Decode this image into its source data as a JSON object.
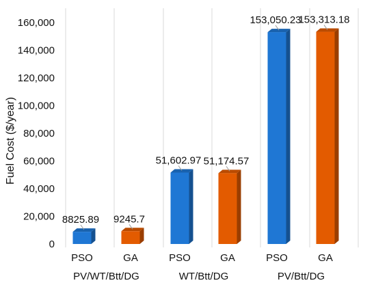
{
  "chart_data": {
    "type": "bar",
    "style": "3d-clustered-column",
    "ylabel": "Fuel Cost ($/year)",
    "xlabel": "",
    "ylim": [
      0,
      160000
    ],
    "yticks": [
      0,
      20000,
      40000,
      60000,
      80000,
      100000,
      120000,
      140000,
      160000
    ],
    "ytick_labels": [
      "0",
      "20,000",
      "40,000",
      "60,000",
      "80,000",
      "100,000",
      "120,000",
      "140,000",
      "160,000"
    ],
    "grid": "vertical",
    "groups": [
      {
        "label": "PV/WT/Btt/DG",
        "bars": [
          {
            "category": "PSO",
            "value": 8825.89,
            "label": "8825.89",
            "color": "#1f77d4"
          },
          {
            "category": "GA",
            "value": 9245.7,
            "label": "9245.7",
            "color": "#e35b00"
          }
        ]
      },
      {
        "label": "WT/Btt/DG",
        "bars": [
          {
            "category": "PSO",
            "value": 51602.97,
            "label": "51,602.97",
            "color": "#1f77d4"
          },
          {
            "category": "GA",
            "value": 51174.57,
            "label": "51,174.57",
            "color": "#e35b00"
          }
        ]
      },
      {
        "label": "PV/Btt/DG",
        "bars": [
          {
            "category": "PSO",
            "value": 153050.23,
            "label": "153,050.23",
            "color": "#1f77d4"
          },
          {
            "category": "GA",
            "value": 153313.18,
            "label": "153,313.18",
            "color": "#e35b00"
          }
        ]
      }
    ]
  }
}
